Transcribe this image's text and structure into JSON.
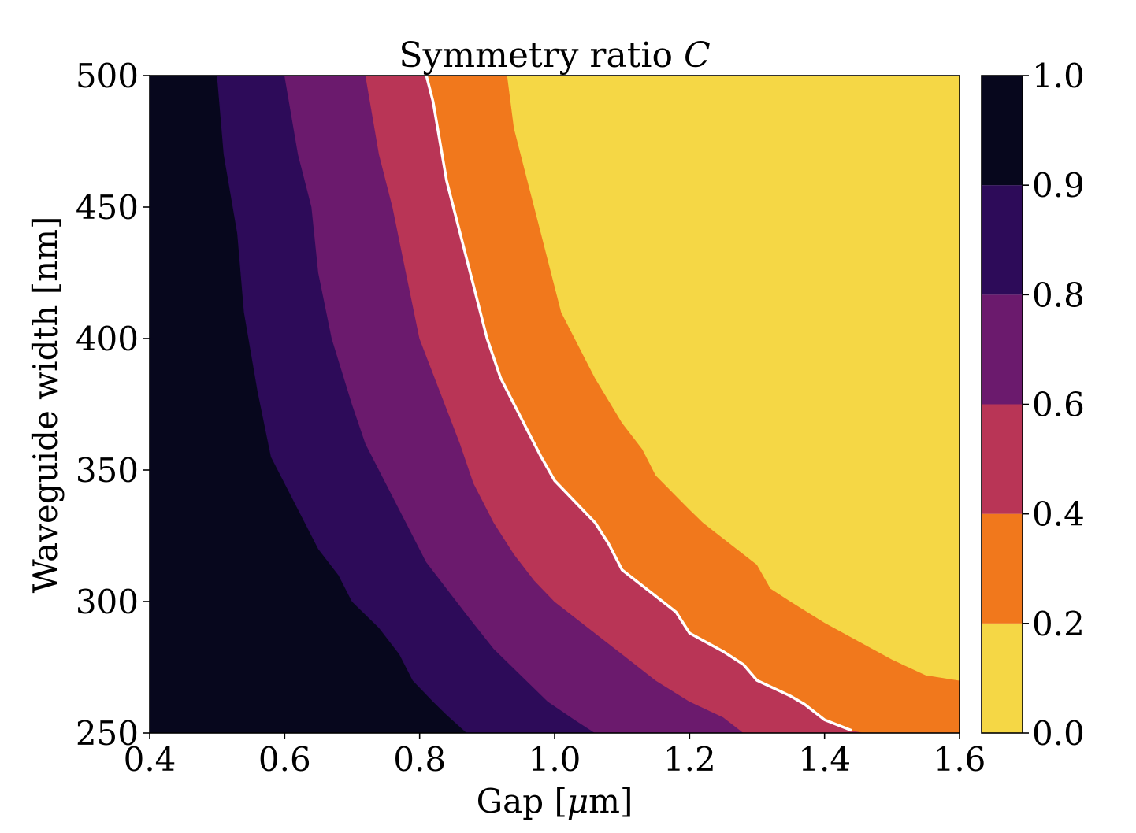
{
  "chart_data": {
    "type": "heatmap",
    "subtype": "filled-contour",
    "title_main": "Symmetry ratio ",
    "title_var": "C",
    "xlabel_main": "Gap [",
    "xlabel_mu": "μ",
    "xlabel_unit": "m]",
    "ylabel": "Waveguide width [nm]",
    "xlim": [
      0.4,
      1.6
    ],
    "ylim": [
      250,
      500
    ],
    "x_ticks": [
      0.4,
      0.6,
      0.8,
      1.0,
      1.2,
      1.4,
      1.6
    ],
    "x_tick_labels": [
      "0.4",
      "0.6",
      "0.8",
      "1.0",
      "1.2",
      "1.4",
      "1.6"
    ],
    "y_ticks": [
      250,
      300,
      350,
      400,
      450,
      500
    ],
    "y_tick_labels": [
      "250",
      "300",
      "350",
      "400",
      "450",
      "500"
    ],
    "grid": false,
    "colormap": "inferno",
    "levels": [
      0.0,
      0.2,
      0.4,
      0.6,
      0.8,
      0.9,
      1.0
    ],
    "colorbar": {
      "ticks": [
        0.0,
        0.2,
        0.4,
        0.6,
        0.8,
        0.9,
        1.0
      ],
      "tick_labels": [
        "0.0",
        "0.2",
        "0.4",
        "0.6",
        "0.8",
        "0.9",
        "1.0"
      ],
      "colors": [
        "#f5d745",
        "#f1781c",
        "#b93556",
        "#6b1a6d",
        "#2d0b59",
        "#07071d"
      ],
      "ranges": [
        [
          0.0,
          0.2
        ],
        [
          0.2,
          0.4
        ],
        [
          0.4,
          0.6
        ],
        [
          0.6,
          0.8
        ],
        [
          0.8,
          0.9
        ],
        [
          0.9,
          1.0
        ]
      ]
    },
    "band_colors": {
      "above_0.9": "#07071d",
      "0.8_0.9": "#2d0b59",
      "0.6_0.8": "#6b1a6d",
      "0.4_0.6": "#b93556",
      "0.2_0.4": "#f1781c",
      "below_0.2": "#f5d745"
    },
    "contour_boundaries": [
      {
        "level": 0.9,
        "points": [
          [
            0.5,
            500
          ],
          [
            0.51,
            470
          ],
          [
            0.53,
            440
          ],
          [
            0.54,
            410
          ],
          [
            0.56,
            380
          ],
          [
            0.58,
            355
          ],
          [
            0.62,
            335
          ],
          [
            0.65,
            320
          ],
          [
            0.68,
            310
          ],
          [
            0.7,
            300
          ],
          [
            0.74,
            290
          ],
          [
            0.77,
            280
          ],
          [
            0.79,
            270
          ],
          [
            0.82,
            262
          ],
          [
            0.84,
            257
          ],
          [
            0.87,
            250
          ]
        ]
      },
      {
        "level": 0.8,
        "points": [
          [
            0.6,
            500
          ],
          [
            0.62,
            470
          ],
          [
            0.64,
            450
          ],
          [
            0.65,
            425
          ],
          [
            0.67,
            400
          ],
          [
            0.7,
            375
          ],
          [
            0.72,
            360
          ],
          [
            0.75,
            345
          ],
          [
            0.78,
            330
          ],
          [
            0.81,
            315
          ],
          [
            0.84,
            305
          ],
          [
            0.87,
            295
          ],
          [
            0.91,
            282
          ],
          [
            0.95,
            272
          ],
          [
            0.99,
            262
          ],
          [
            1.03,
            255
          ],
          [
            1.06,
            250
          ]
        ]
      },
      {
        "level": 0.6,
        "points": [
          [
            0.72,
            500
          ],
          [
            0.74,
            470
          ],
          [
            0.76,
            450
          ],
          [
            0.78,
            425
          ],
          [
            0.8,
            400
          ],
          [
            0.83,
            380
          ],
          [
            0.86,
            360
          ],
          [
            0.88,
            345
          ],
          [
            0.91,
            330
          ],
          [
            0.94,
            318
          ],
          [
            0.97,
            308
          ],
          [
            1.0,
            300
          ],
          [
            1.05,
            290
          ],
          [
            1.1,
            280
          ],
          [
            1.15,
            270
          ],
          [
            1.2,
            262
          ],
          [
            1.25,
            256
          ],
          [
            1.28,
            250
          ]
        ]
      },
      {
        "level": 0.4,
        "points": [
          [
            0.81,
            500
          ],
          [
            0.82,
            490
          ],
          [
            0.84,
            460
          ],
          [
            0.86,
            440
          ],
          [
            0.88,
            420
          ],
          [
            0.9,
            400
          ],
          [
            0.92,
            385
          ],
          [
            0.94,
            375
          ],
          [
            0.96,
            365
          ],
          [
            0.98,
            355
          ],
          [
            1.0,
            346
          ],
          [
            1.03,
            338
          ],
          [
            1.06,
            330
          ],
          [
            1.08,
            322
          ],
          [
            1.1,
            312
          ],
          [
            1.15,
            302
          ],
          [
            1.18,
            296
          ],
          [
            1.2,
            288
          ],
          [
            1.25,
            281
          ],
          [
            1.28,
            276
          ],
          [
            1.3,
            270
          ],
          [
            1.35,
            264
          ],
          [
            1.37,
            261
          ],
          [
            1.4,
            255
          ],
          [
            1.44,
            251
          ],
          [
            1.46,
            250
          ]
        ]
      },
      {
        "level": 0.2,
        "points": [
          [
            0.93,
            500
          ],
          [
            0.94,
            480
          ],
          [
            0.96,
            460
          ],
          [
            0.98,
            440
          ],
          [
            1.0,
            420
          ],
          [
            1.01,
            410
          ],
          [
            1.04,
            395
          ],
          [
            1.06,
            385
          ],
          [
            1.1,
            368
          ],
          [
            1.13,
            358
          ],
          [
            1.15,
            348
          ],
          [
            1.2,
            335
          ],
          [
            1.22,
            330
          ],
          [
            1.27,
            320
          ],
          [
            1.3,
            314
          ],
          [
            1.32,
            305
          ],
          [
            1.35,
            300
          ],
          [
            1.4,
            292
          ],
          [
            1.45,
            285
          ],
          [
            1.5,
            278
          ],
          [
            1.55,
            272
          ],
          [
            1.6,
            270
          ],
          [
            1.6,
            250
          ]
        ]
      }
    ],
    "highlight_line": {
      "level": 0.4,
      "color": "#ffffff",
      "points": [
        [
          0.81,
          500
        ],
        [
          0.82,
          490
        ],
        [
          0.84,
          460
        ],
        [
          0.86,
          440
        ],
        [
          0.88,
          420
        ],
        [
          0.9,
          400
        ],
        [
          0.92,
          385
        ],
        [
          0.94,
          375
        ],
        [
          0.96,
          365
        ],
        [
          0.98,
          355
        ],
        [
          1.0,
          346
        ],
        [
          1.03,
          338
        ],
        [
          1.06,
          330
        ],
        [
          1.08,
          322
        ],
        [
          1.1,
          312
        ],
        [
          1.15,
          302
        ],
        [
          1.18,
          296
        ],
        [
          1.2,
          288
        ],
        [
          1.25,
          281
        ],
        [
          1.28,
          276
        ],
        [
          1.3,
          270
        ],
        [
          1.35,
          264
        ],
        [
          1.37,
          261
        ],
        [
          1.4,
          255
        ],
        [
          1.44,
          251
        ]
      ]
    }
  }
}
